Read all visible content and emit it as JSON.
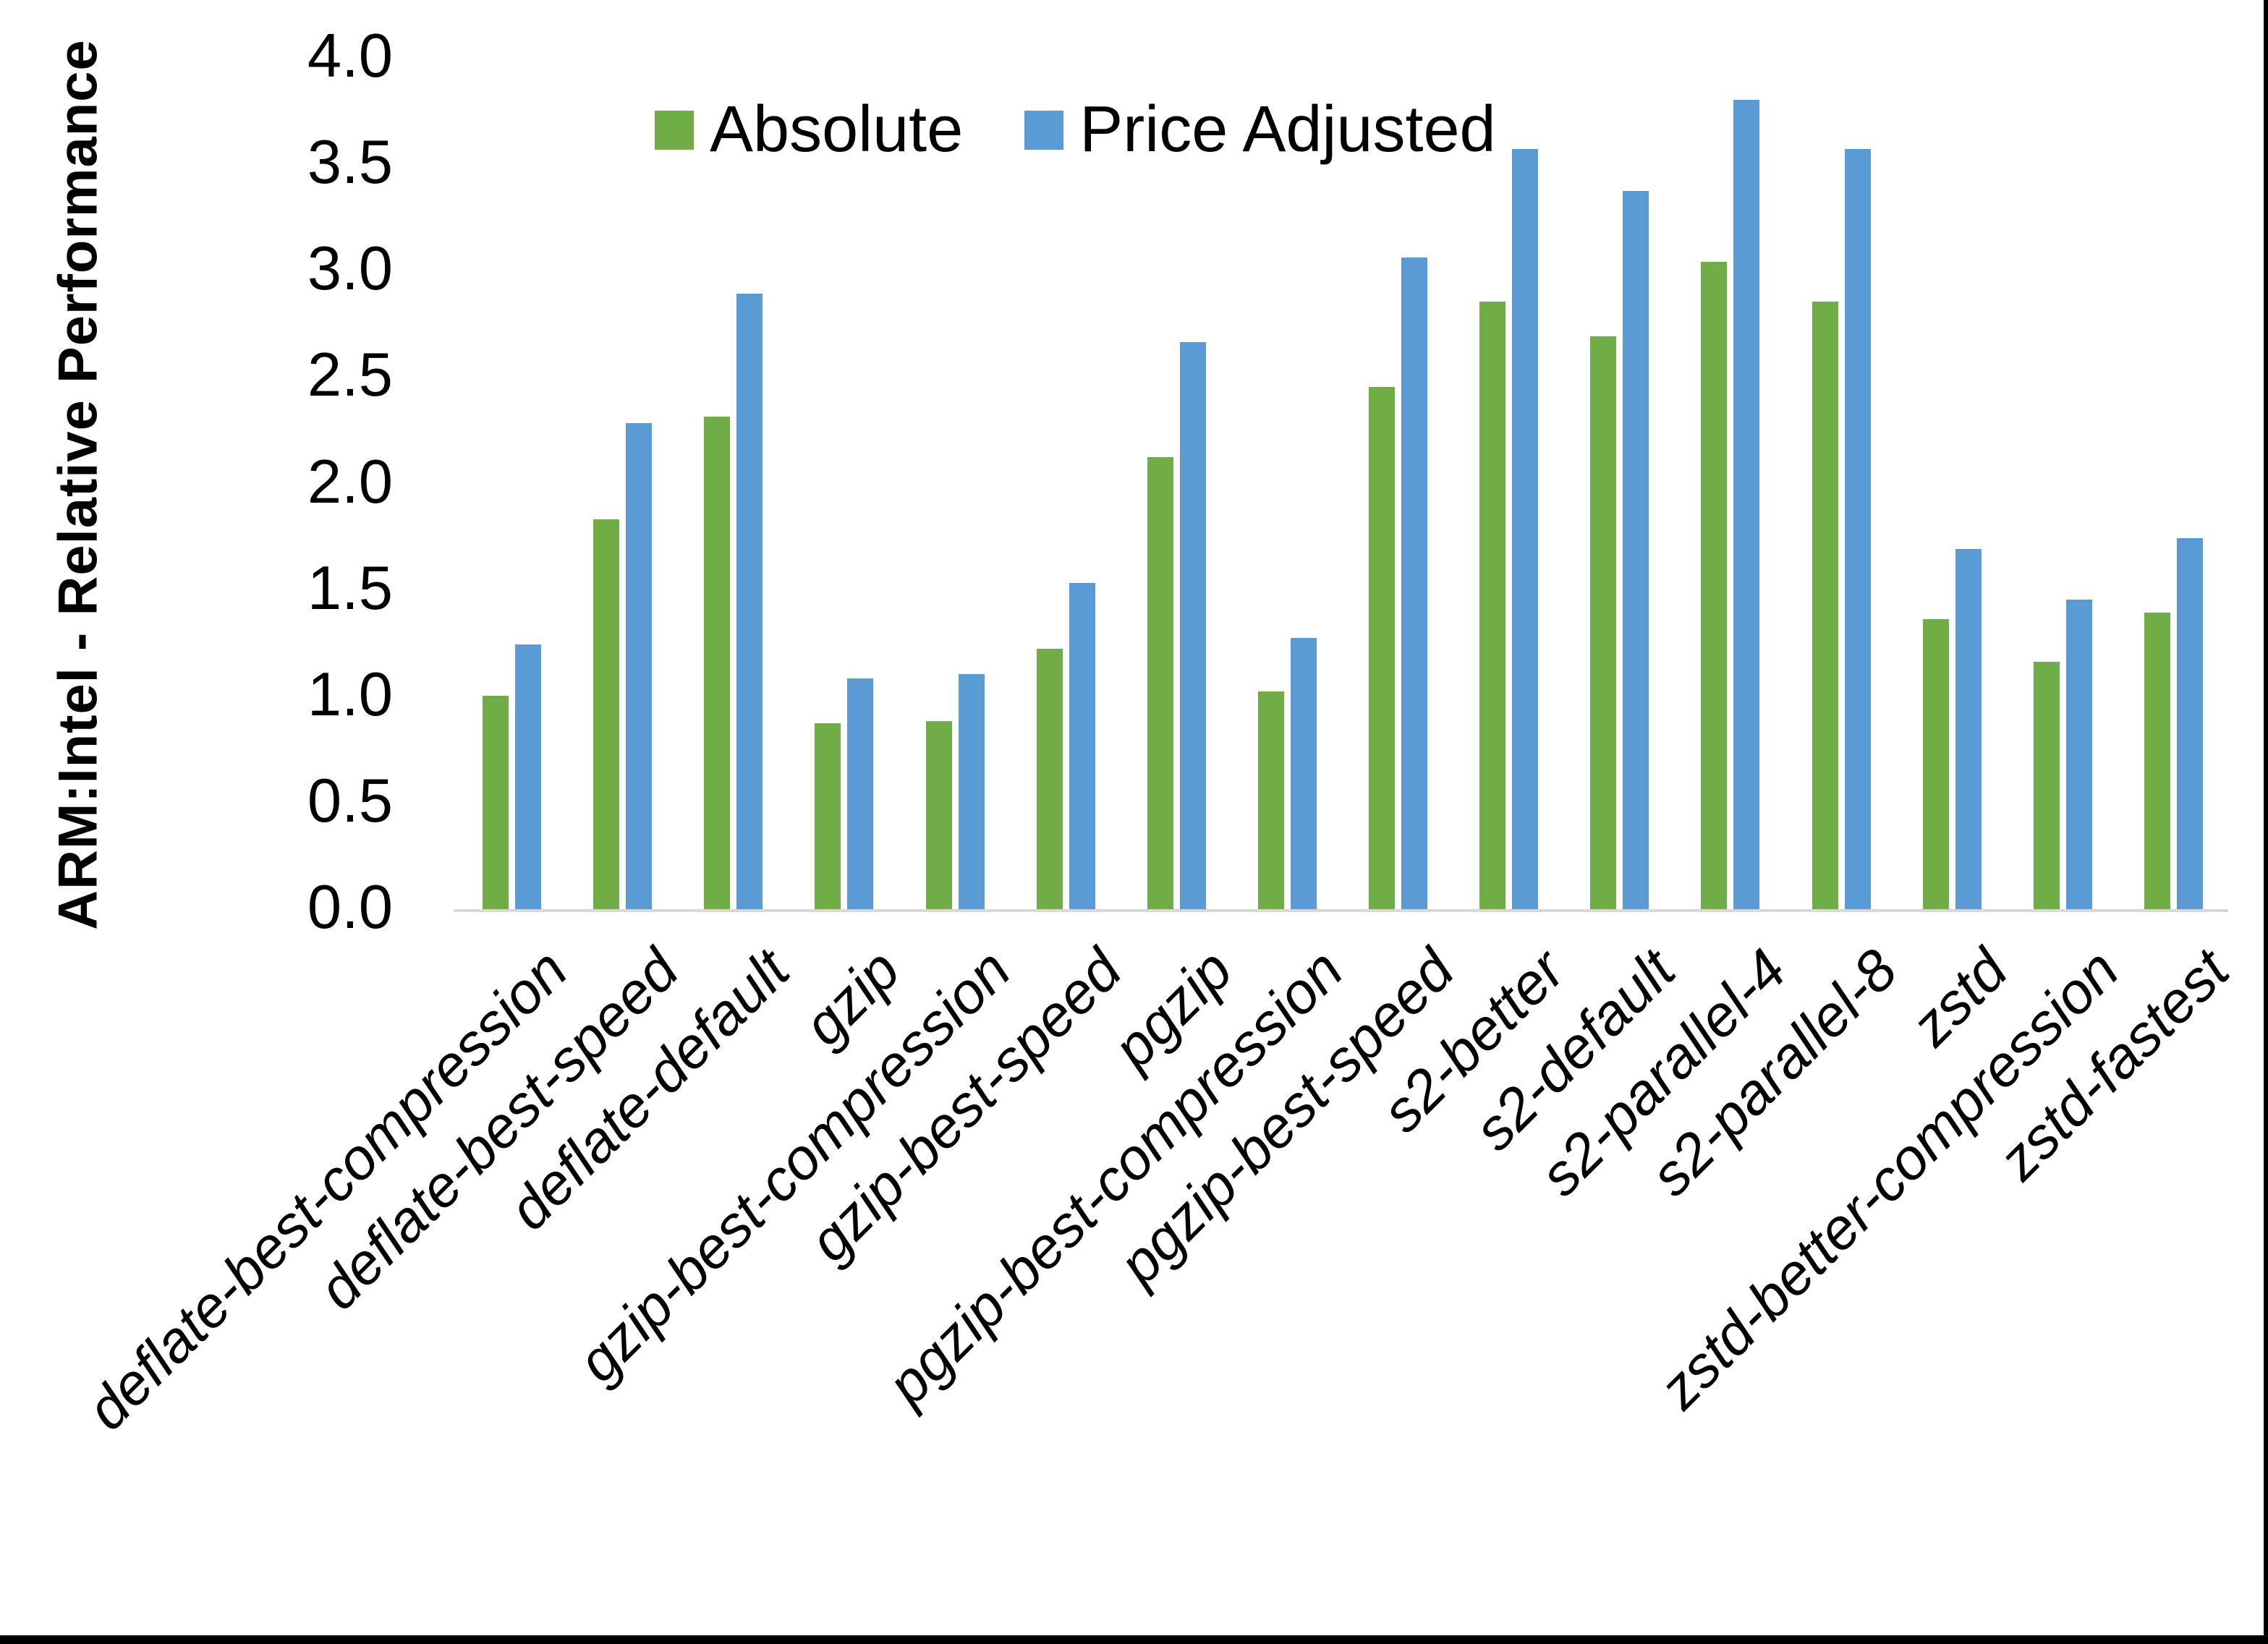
{
  "chart_data": {
    "type": "bar",
    "title": "",
    "ylabel": "ARM:Intel - Relative Performance",
    "xlabel": "",
    "ylim": [
      0.0,
      4.0
    ],
    "ytick_step": 0.5,
    "grid": false,
    "legend_position": "top-center",
    "axis_line_color": "#D9D9D9",
    "yticks": [
      {
        "label": "0.0",
        "value": 0.0
      },
      {
        "label": "0.5",
        "value": 0.5
      },
      {
        "label": "1.0",
        "value": 1.0
      },
      {
        "label": "1.5",
        "value": 1.5
      },
      {
        "label": "2.0",
        "value": 2.0
      },
      {
        "label": "2.5",
        "value": 2.5
      },
      {
        "label": "3.0",
        "value": 3.0
      },
      {
        "label": "3.5",
        "value": 3.5
      },
      {
        "label": "4.0",
        "value": 4.0
      }
    ],
    "categories": [
      "deflate-best-compression",
      "deflate-best-speed",
      "deflate-default",
      "gzip",
      "gzip-best-compression",
      "gzip-best-speed",
      "pgzip",
      "pgzip-best-compression",
      "pgzip-best-speed",
      "s2-better",
      "s2-default",
      "s2-parallel-4",
      "s2-parallel-8",
      "zstd",
      "zstd-better-compression",
      "zstd-fastest"
    ],
    "series": [
      {
        "name": "Absolute",
        "color": "#70AD47",
        "values": [
          1.01,
          1.84,
          2.32,
          0.88,
          0.89,
          1.23,
          2.13,
          1.03,
          2.46,
          2.86,
          2.7,
          3.05,
          2.86,
          1.37,
          1.17,
          1.4
        ]
      },
      {
        "name": "Price Adjusted",
        "color": "#5B9BD5",
        "values": [
          1.25,
          2.29,
          2.9,
          1.09,
          1.11,
          1.54,
          2.67,
          1.28,
          3.07,
          3.58,
          3.38,
          3.81,
          3.58,
          1.7,
          1.46,
          1.75
        ]
      }
    ]
  }
}
